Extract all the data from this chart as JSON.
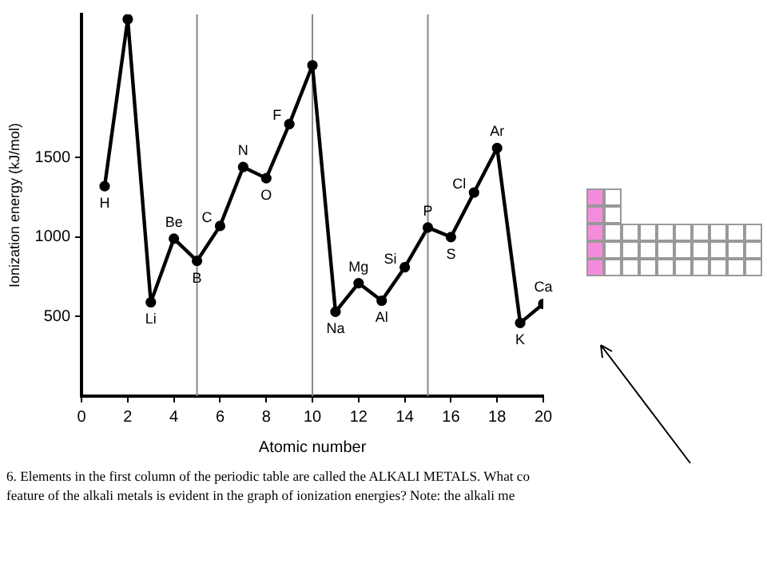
{
  "chart_data": {
    "type": "line",
    "xlabel": "Atomic number",
    "ylabel": "Ionization energy (kJ/mol)",
    "x": [
      1,
      2,
      3,
      4,
      5,
      6,
      7,
      8,
      9,
      10,
      11,
      12,
      13,
      14,
      15,
      16,
      17,
      18,
      19,
      20
    ],
    "series": [
      {
        "color": "#000000",
        "values": [
          1320,
          2370,
          590,
          990,
          850,
          1070,
          1440,
          1370,
          1710,
          2080,
          530,
          710,
          600,
          810,
          1060,
          1000,
          1280,
          1560,
          460,
          580
        ]
      }
    ],
    "xlim": [
      0,
      20
    ],
    "xticks": [
      0,
      2,
      4,
      6,
      8,
      10,
      12,
      14,
      16,
      18,
      20
    ],
    "ylim": [
      0,
      2400
    ],
    "yticks": [
      500,
      1000,
      1500
    ],
    "grid": false,
    "legend": false,
    "marker": "circle",
    "line_style": "solid",
    "ref_lines": [
      {
        "axis": "x",
        "value": 5,
        "color": "#888888"
      },
      {
        "axis": "x",
        "value": 10,
        "color": "#888888"
      },
      {
        "axis": "x",
        "value": 15,
        "color": "#888888"
      }
    ],
    "annotations": [
      {
        "text": "H",
        "x": 1,
        "y": 1320
      },
      {
        "text": "Li",
        "x": 3,
        "y": 590
      },
      {
        "text": "Be",
        "x": 4,
        "y": 990
      },
      {
        "text": "B",
        "x": 5,
        "y": 850
      },
      {
        "text": "C",
        "x": 6,
        "y": 1070
      },
      {
        "text": "N",
        "x": 7,
        "y": 1440
      },
      {
        "text": "O",
        "x": 8,
        "y": 1370
      },
      {
        "text": "F",
        "x": 9,
        "y": 1710
      },
      {
        "text": "Na",
        "x": 11,
        "y": 530
      },
      {
        "text": "Mg",
        "x": 12,
        "y": 710
      },
      {
        "text": "Al",
        "x": 13,
        "y": 600
      },
      {
        "text": "Si",
        "x": 14,
        "y": 810
      },
      {
        "text": "P",
        "x": 15,
        "y": 1060
      },
      {
        "text": "S",
        "x": 16,
        "y": 1000
      },
      {
        "text": "Cl",
        "x": 17,
        "y": 1280
      },
      {
        "text": "Ar",
        "x": 18,
        "y": 1560
      },
      {
        "text": "K",
        "x": 19,
        "y": 460
      },
      {
        "text": "Ca",
        "x": 20,
        "y": 580
      },
      "6. Elements in the first column of the periodic table are called the ALKALI METALS.  What co",
      "feature of the alkali metals is evident in the graph of ionization energies?  Note:  the alkali me"
    ]
  }
}
